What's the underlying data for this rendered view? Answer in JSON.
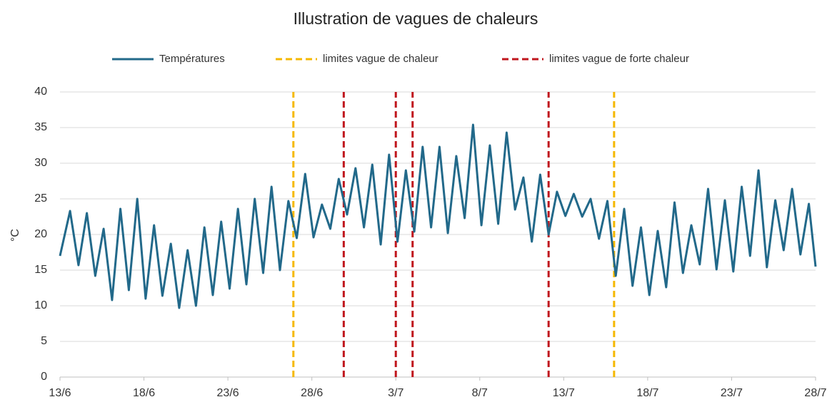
{
  "chart_data": {
    "type": "line",
    "title": "Illustration de vagues de chaleurs",
    "ylabel": "°C",
    "x": [
      0,
      0.6,
      1.1,
      1.6,
      2.1,
      2.6,
      3.1,
      3.6,
      4.1,
      4.6,
      5.1,
      5.6,
      6.1,
      6.6,
      7.1,
      7.6,
      8.1,
      8.6,
      9.1,
      9.6,
      10.1,
      10.6,
      11.1,
      11.6,
      12.1,
      12.6,
      13.1,
      13.6,
      14.1,
      14.6,
      15.1,
      15.6,
      16.1,
      16.6,
      17.1,
      17.6,
      18.1,
      18.6,
      19.1,
      19.6,
      20.1,
      20.6,
      21.1,
      21.6,
      22.1,
      22.6,
      23.1,
      23.6,
      24.1,
      24.6,
      25.1,
      25.6,
      26.1,
      26.6,
      27.1,
      27.6,
      28.1,
      28.6,
      29.1,
      29.6,
      30.1,
      30.6,
      31.1,
      31.6,
      32.1,
      32.6,
      33.1,
      33.6,
      34.1,
      34.6,
      35.1,
      35.6,
      36.1,
      36.6,
      37.1,
      37.6,
      38.1,
      38.6,
      39.1,
      39.6,
      40.1,
      40.6,
      41.1,
      41.6,
      42.1,
      42.6,
      43.1,
      43.6,
      44.1,
      44.6,
      45
    ],
    "series": [
      {
        "name": "Températures",
        "color": "#22698a",
        "values": [
          17,
          23.3,
          15.7,
          23,
          14.2,
          20.8,
          10.8,
          23.6,
          12.2,
          25,
          11,
          21.3,
          11.4,
          18.7,
          9.7,
          17.8,
          10,
          21,
          11.5,
          21.8,
          12.4,
          23.6,
          13,
          25,
          14.6,
          26.7,
          15,
          24.7,
          19.5,
          28.5,
          19.6,
          24.2,
          20.8,
          27.8,
          22.8,
          29.3,
          21,
          29.8,
          18.6,
          31.2,
          19,
          29,
          20.4,
          32.3,
          21,
          32.3,
          20.2,
          31,
          22.3,
          35.4,
          21.3,
          32.5,
          21.5,
          34.3,
          23.5,
          28,
          19,
          28.4,
          20,
          26,
          22.6,
          25.7,
          22.5,
          25,
          19.4,
          24.7,
          14.2,
          23.6,
          12.8,
          21,
          11.5,
          20.5,
          12.6,
          24.5,
          14.6,
          21.3,
          15.8,
          26.4,
          15.1,
          24.8,
          14.8,
          26.7,
          17,
          29,
          15.4,
          24.8,
          17.8,
          26.4,
          17.2,
          24.3,
          15.5
        ]
      }
    ],
    "vertical_lines": [
      {
        "name": "limites vague de chaleur",
        "color": "#f5b800",
        "x": [
          13.9,
          33.0
        ]
      },
      {
        "name": "limites vague de forte chaleur",
        "color": "#c0161d",
        "x": [
          16.9,
          20.0,
          21.0,
          29.1
        ]
      }
    ],
    "xlim": [
      0,
      45
    ],
    "xticks": [
      {
        "value": 0,
        "label": "13/6"
      },
      {
        "value": 5,
        "label": "18/6"
      },
      {
        "value": 10,
        "label": "23/6"
      },
      {
        "value": 15,
        "label": "28/6"
      },
      {
        "value": 20,
        "label": "3/7"
      },
      {
        "value": 25,
        "label": "8/7"
      },
      {
        "value": 30,
        "label": "13/7"
      },
      {
        "value": 35,
        "label": "18/7"
      },
      {
        "value": 40,
        "label": "23/7"
      },
      {
        "value": 45,
        "label": "28/7"
      }
    ],
    "ylim": [
      0,
      40
    ],
    "yticks": [
      0,
      5,
      10,
      15,
      20,
      25,
      30,
      35,
      40
    ],
    "grid": true
  }
}
